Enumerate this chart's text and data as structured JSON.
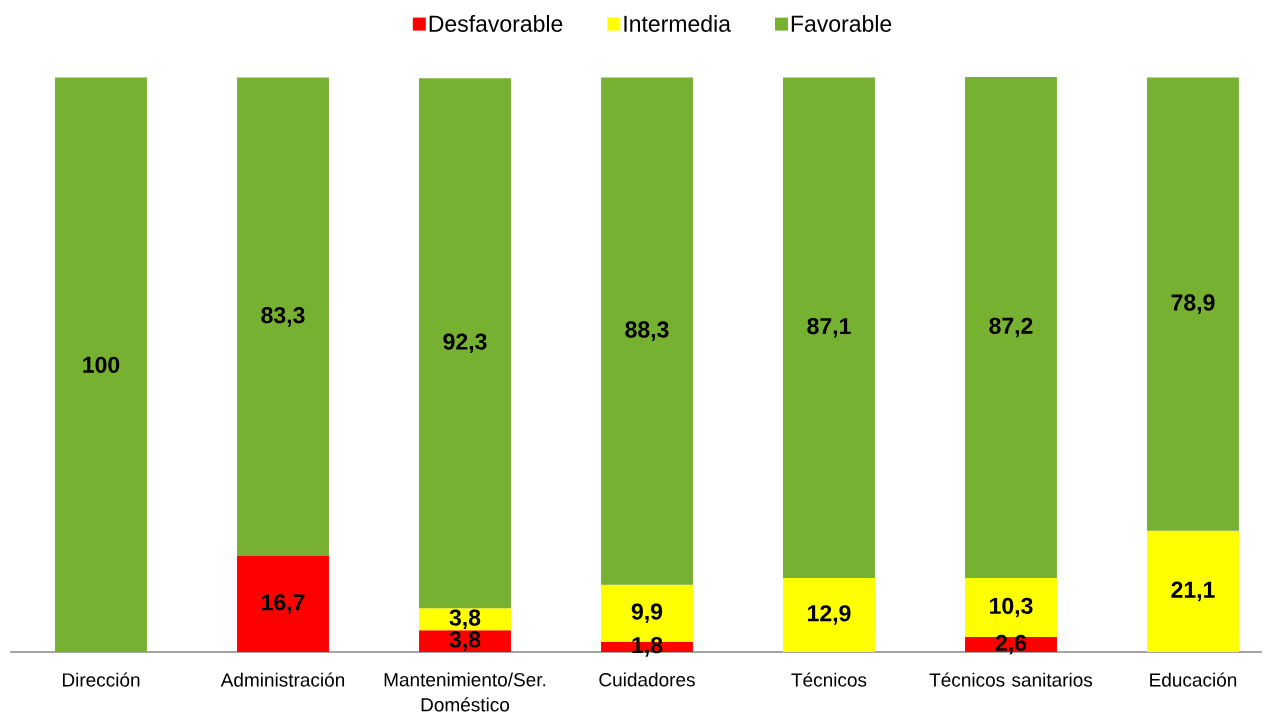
{
  "chart_data": {
    "type": "bar",
    "stacked": true,
    "categories": [
      "Dirección",
      "Administración",
      "Mantenimiento/Ser. Doméstico",
      "Cuidadores",
      "Técnicos",
      "Técnicos sanitarios",
      "Educación"
    ],
    "series": [
      {
        "name": "Desfavorable",
        "color": "#ff0000",
        "values": [
          null,
          16.7,
          3.8,
          1.8,
          null,
          2.6,
          null
        ],
        "value_labels": [
          null,
          "16,7",
          "3,8",
          "1,8",
          null,
          "2,6",
          null
        ]
      },
      {
        "name": "Intermedia",
        "color": "#ffff00",
        "values": [
          null,
          null,
          3.8,
          9.9,
          12.9,
          10.3,
          21.1
        ],
        "value_labels": [
          null,
          null,
          "3,8",
          "9,9",
          "12,9",
          "10,3",
          "21,1"
        ]
      },
      {
        "name": "Favorable",
        "color": "#77b132",
        "values": [
          100,
          83.3,
          92.3,
          88.3,
          87.1,
          87.2,
          78.9
        ],
        "value_labels": [
          "100",
          "83,3",
          "92,3",
          "88,3",
          "87,1",
          "87,2",
          "78,9"
        ]
      }
    ],
    "ylim": [
      0,
      100.1
    ],
    "legend": "top",
    "tick_labels": "x"
  }
}
